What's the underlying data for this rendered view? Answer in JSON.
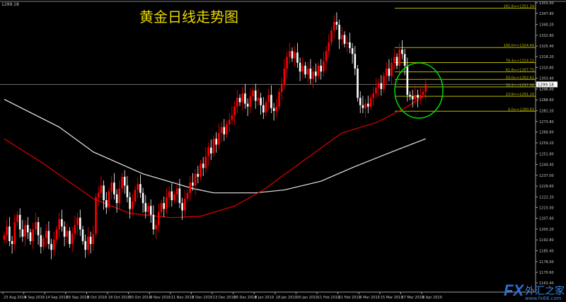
{
  "header": {
    "title": "黄金日线走势图",
    "current_price_label": "1299.18"
  },
  "watermark": {
    "logo": "FX",
    "name": "外汇之家",
    "url": "www.fx68.com"
  },
  "colors": {
    "bull": "#ff0000",
    "bear": "#ffffff",
    "ma_fast": "#e00000",
    "ma_slow": "#e8e8e8",
    "fib": "#b8b800",
    "circle": "#00e000",
    "axis": "#a0a0a0"
  },
  "chart_data": {
    "type": "candlestick",
    "title": "黄金日线走势图",
    "ylim": [
      1163.4,
      1355.0
    ],
    "y_ticks": [
      "1355.00",
      "1347.80",
      "1340.20",
      "1332.80",
      "1325.40",
      "1318.20",
      "1310.80",
      "1303.40",
      "1296.00",
      "1288.60",
      "1281.20",
      "1273.80",
      "1266.60",
      "1259.20",
      "1251.80",
      "1244.40",
      "1237.00",
      "1229.60",
      "1222.20",
      "1215.00",
      "1207.60",
      "1200.20",
      "1192.80",
      "1185.40",
      "1178.00",
      "1170.60",
      "1163.40"
    ],
    "x_ticks": [
      "23 Aug 2018",
      "4 Sep 2018",
      "14 Sep 2018",
      "26 Sep 2018",
      "8 Oct 2018",
      "18 Oct 2018",
      "30 Oct 2018",
      "9 Nov 2018",
      "21 Nov 2018",
      "3 Dec 2018",
      "13 Dec 2018",
      "26 Dec 2018",
      "8 Jan 2019",
      "18 Jan 2019",
      "30 Jan 2019",
      "11 Feb 2019",
      "21 Feb 2019",
      "5 Mar 2019",
      "15 Mar 2019",
      "27 Mar 2019",
      "8 Apr 2019"
    ],
    "closes": [
      1196,
      1202,
      1192,
      1190,
      1205,
      1210,
      1200,
      1195,
      1203,
      1198,
      1192,
      1200,
      1205,
      1196,
      1188,
      1194,
      1199,
      1190,
      1186,
      1193,
      1200,
      1207,
      1202,
      1195,
      1199,
      1190,
      1197,
      1203,
      1208,
      1200,
      1192,
      1186,
      1195,
      1190,
      1197,
      1222,
      1225,
      1230,
      1220,
      1215,
      1226,
      1232,
      1224,
      1218,
      1228,
      1236,
      1230,
      1222,
      1214,
      1219,
      1227,
      1231,
      1225,
      1218,
      1212,
      1216,
      1210,
      1200,
      1203,
      1212,
      1218,
      1214,
      1222,
      1226,
      1220,
      1224,
      1228,
      1218,
      1213,
      1221,
      1225,
      1232,
      1230,
      1238,
      1236,
      1245,
      1242,
      1250,
      1256,
      1252,
      1262,
      1258,
      1266,
      1270,
      1265,
      1272,
      1275,
      1278,
      1284,
      1290,
      1287,
      1293,
      1286,
      1284,
      1291,
      1295,
      1288,
      1290,
      1285,
      1280,
      1287,
      1292,
      1283,
      1281,
      1284,
      1294,
      1299,
      1310,
      1318,
      1322,
      1317,
      1321,
      1314,
      1308,
      1312,
      1306,
      1310,
      1303,
      1308,
      1305,
      1312,
      1308,
      1315,
      1322,
      1328,
      1336,
      1342,
      1340,
      1330,
      1333,
      1327,
      1328,
      1324,
      1320,
      1310,
      1290,
      1285,
      1283,
      1286,
      1284,
      1290,
      1293,
      1297,
      1300,
      1296,
      1305,
      1310,
      1305,
      1314,
      1318,
      1312,
      1323,
      1320,
      1312,
      1292,
      1291,
      1289,
      1292,
      1290,
      1292,
      1294,
      1299.18
    ],
    "ma_fast": [
      [
        0,
        1262
      ],
      [
        15,
        1245
      ],
      [
        34,
        1221
      ],
      [
        48,
        1211
      ],
      [
        64,
        1208
      ],
      [
        75,
        1209
      ],
      [
        88,
        1216
      ],
      [
        99,
        1227
      ],
      [
        112,
        1244
      ],
      [
        129,
        1266
      ],
      [
        142,
        1273
      ],
      [
        153,
        1283
      ],
      [
        161,
        1292
      ]
    ],
    "ma_slow": [
      [
        0,
        1289
      ],
      [
        21,
        1270
      ],
      [
        34,
        1253
      ],
      [
        53,
        1238
      ],
      [
        72,
        1228
      ],
      [
        80,
        1225
      ],
      [
        96,
        1225
      ],
      [
        107,
        1227
      ],
      [
        121,
        1233
      ],
      [
        134,
        1243
      ],
      [
        148,
        1253
      ],
      [
        161,
        1262
      ]
    ],
    "current_price": 1299.18,
    "fibonacci": [
      {
        "label": "161.8=>1351.34",
        "price": 1351.34
      },
      {
        "label": "100.0=>1324.40",
        "price": 1324.4
      },
      {
        "label": "76.4=>1314.11",
        "price": 1314.11
      },
      {
        "label": "61.8=>1307.75",
        "price": 1307.75
      },
      {
        "label": "50.0=>1302.61",
        "price": 1302.61
      },
      {
        "label": "38.2=>1297.46",
        "price": 1297.46
      },
      {
        "label": "23.6=>1291.10",
        "price": 1291.1
      },
      {
        "label": "0.0=>1280.83",
        "price": 1280.83
      }
    ]
  }
}
